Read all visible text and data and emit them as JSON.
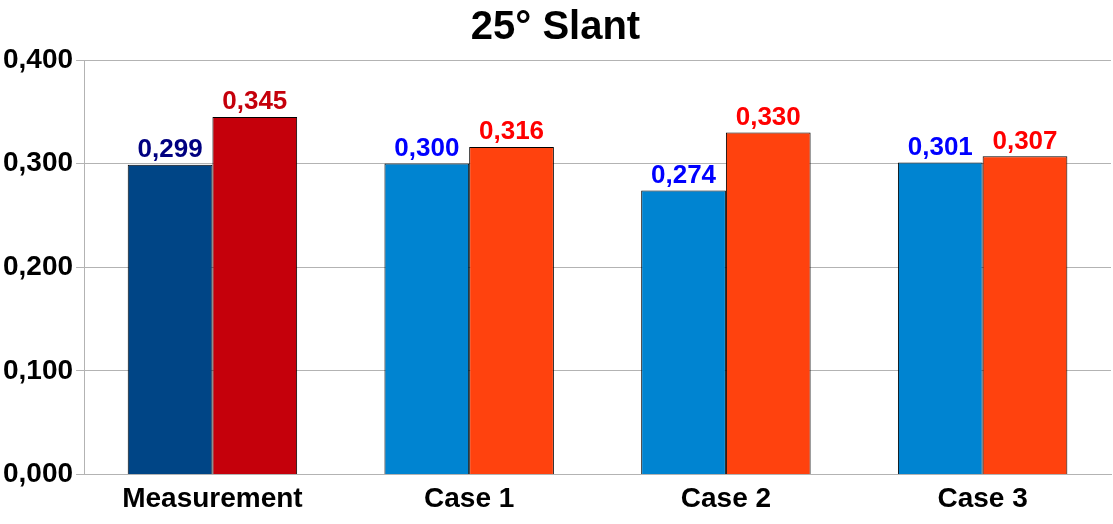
{
  "chart_data": {
    "type": "bar",
    "title": "25° Slant",
    "categories": [
      "Measurement",
      "Case 1",
      "Case 2",
      "Case 3"
    ],
    "series": [
      {
        "colors": [
          "#004586",
          "#0084d1",
          "#0084d1",
          "#0084d1"
        ],
        "values": [
          0.299,
          0.3,
          0.274,
          0.301
        ],
        "value_labels": [
          "0,299",
          "0,300",
          "0,274",
          "0,301"
        ]
      },
      {
        "colors": [
          "#c5000b",
          "#ff420e",
          "#ff420e",
          "#ff420e"
        ],
        "values": [
          0.345,
          0.316,
          0.33,
          0.307
        ],
        "value_labels": [
          "0,345",
          "0,316",
          "0,330",
          "0,307"
        ]
      }
    ],
    "ylim": [
      0,
      0.4
    ],
    "yticks": [
      {
        "value": 0,
        "label": "0,000"
      },
      {
        "value": 0.1,
        "label": "0,100"
      },
      {
        "value": 0.2,
        "label": "0,200"
      },
      {
        "value": 0.3,
        "label": "0,300"
      },
      {
        "value": 0.4,
        "label": "0,400"
      }
    ],
    "grid": "y",
    "legend": false
  }
}
